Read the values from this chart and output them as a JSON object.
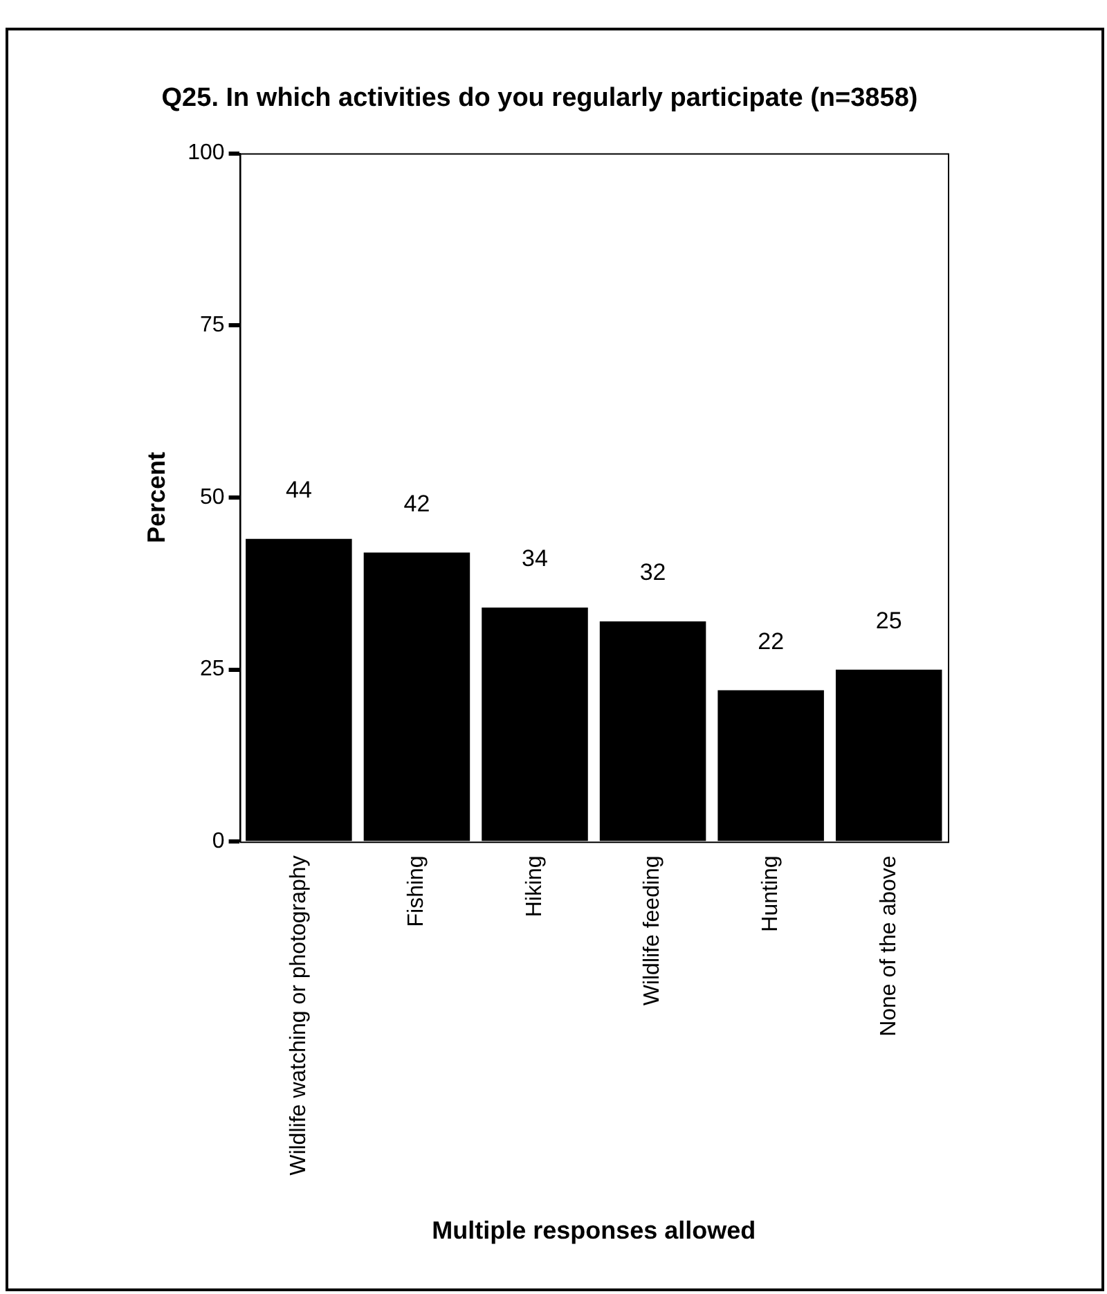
{
  "chart_data": {
    "type": "bar",
    "title": "Q25. In which activities do you regularly participate (n=3858)",
    "xlabel": "Multiple responses allowed",
    "ylabel": "Percent",
    "categories": [
      "Wildlife watching or photography",
      "Fishing",
      "Hiking",
      "Wildlife feeding",
      "Hunting",
      "None of the above"
    ],
    "values": [
      44,
      42,
      34,
      32,
      22,
      25
    ],
    "color": "#000000",
    "ylim": [
      0,
      100
    ],
    "yticks": [
      0,
      25,
      50,
      75,
      100
    ],
    "grid": false,
    "legend": false,
    "data_labels": true
  }
}
